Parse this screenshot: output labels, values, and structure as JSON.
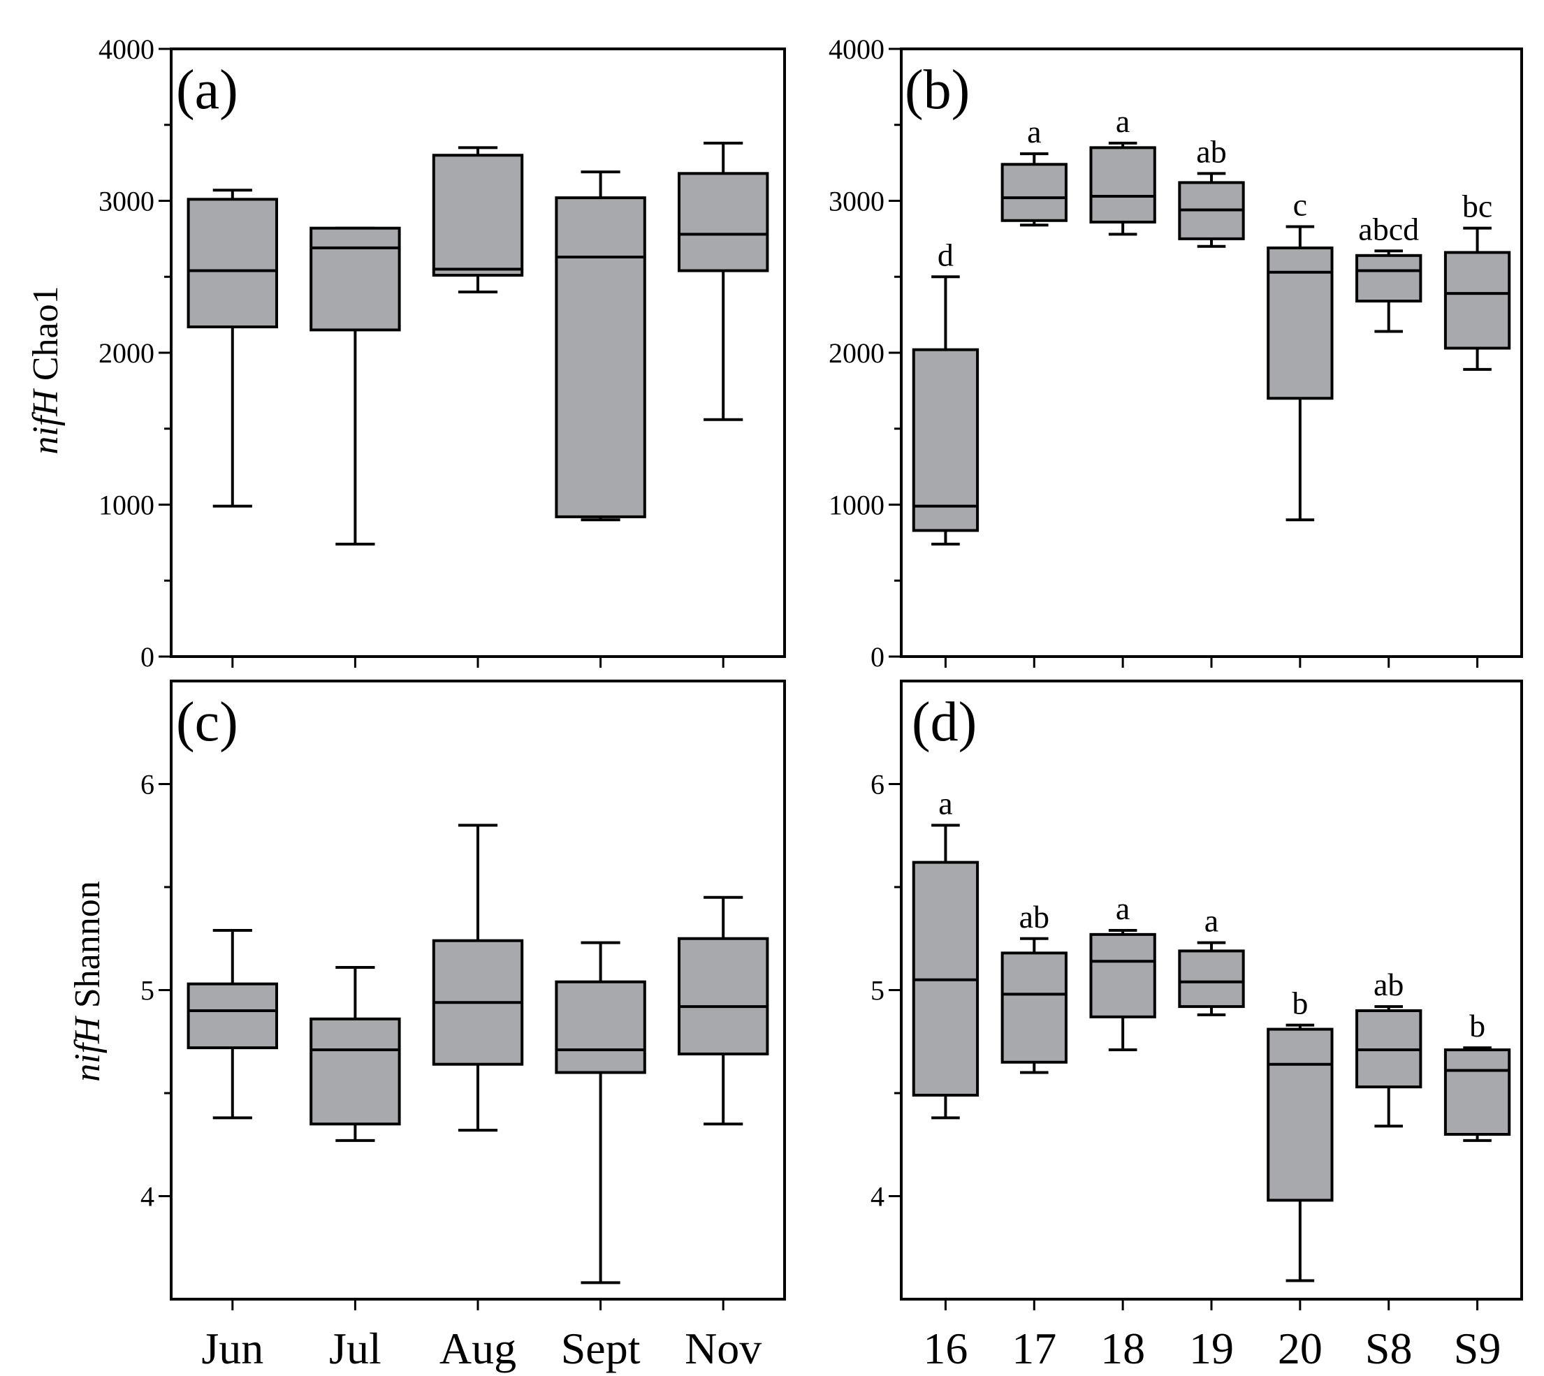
{
  "chart_data": [
    {
      "panel": "(a)",
      "type": "boxplot",
      "ylabel_gene": "nifH",
      "ylabel_metric": "Chao1",
      "ylim": [
        0,
        4000
      ],
      "yticks": [
        0,
        1000,
        2000,
        3000,
        4000
      ],
      "yticks_minor": [
        500,
        1500,
        2500,
        3500
      ],
      "categories": [
        "Jun",
        "Jul",
        "Aug",
        "Sept",
        "Nov"
      ],
      "boxes": [
        {
          "min": 990,
          "q1": 2170,
          "median": 2540,
          "q3": 3010,
          "max": 3070
        },
        {
          "min": 740,
          "q1": 2150,
          "median": 2690,
          "q3": 2820,
          "max": 2820
        },
        {
          "min": 2400,
          "q1": 2510,
          "median": 2550,
          "q3": 3300,
          "max": 3350
        },
        {
          "min": 900,
          "q1": 920,
          "median": 2630,
          "q3": 3020,
          "max": 3190
        },
        {
          "min": 1560,
          "q1": 2540,
          "median": 2780,
          "q3": 3180,
          "max": 3380
        }
      ],
      "letters": []
    },
    {
      "panel": "(b)",
      "type": "boxplot",
      "ylim": [
        0,
        4000
      ],
      "yticks": [
        0,
        1000,
        2000,
        3000,
        4000
      ],
      "yticks_minor": [
        500,
        1500,
        2500,
        3500
      ],
      "categories": [
        "16",
        "17",
        "18",
        "19",
        "20",
        "S8",
        "S9"
      ],
      "boxes": [
        {
          "min": 740,
          "q1": 830,
          "median": 990,
          "q3": 2020,
          "max": 2500
        },
        {
          "min": 2840,
          "q1": 2870,
          "median": 3020,
          "q3": 3240,
          "max": 3310
        },
        {
          "min": 2780,
          "q1": 2860,
          "median": 3030,
          "q3": 3350,
          "max": 3380
        },
        {
          "min": 2700,
          "q1": 2750,
          "median": 2940,
          "q3": 3120,
          "max": 3180
        },
        {
          "min": 900,
          "q1": 1700,
          "median": 2530,
          "q3": 2690,
          "max": 2830
        },
        {
          "min": 2140,
          "q1": 2340,
          "median": 2540,
          "q3": 2640,
          "max": 2670
        },
        {
          "min": 1890,
          "q1": 2030,
          "median": 2390,
          "q3": 2660,
          "max": 2820
        }
      ],
      "letters": [
        "d",
        "a",
        "a",
        "ab",
        "c",
        "abcd",
        "bc"
      ]
    },
    {
      "panel": "(c)",
      "type": "boxplot",
      "ylabel_gene": "nifH",
      "ylabel_metric": "Shannon",
      "ylim": [
        3.5,
        6.5
      ],
      "yticks": [
        4,
        5,
        6
      ],
      "yticks_minor": [
        4.5,
        5.5
      ],
      "categories": [
        "Jun",
        "Jul",
        "Aug",
        "Sept",
        "Nov"
      ],
      "boxes": [
        {
          "min": 4.38,
          "q1": 4.72,
          "median": 4.9,
          "q3": 5.03,
          "max": 5.29
        },
        {
          "min": 4.27,
          "q1": 4.35,
          "median": 4.71,
          "q3": 4.86,
          "max": 5.11
        },
        {
          "min": 4.32,
          "q1": 4.64,
          "median": 4.94,
          "q3": 5.24,
          "max": 5.8
        },
        {
          "min": 3.58,
          "q1": 4.6,
          "median": 4.71,
          "q3": 5.04,
          "max": 5.23
        },
        {
          "min": 4.35,
          "q1": 4.69,
          "median": 4.92,
          "q3": 5.25,
          "max": 5.45
        }
      ],
      "letters": []
    },
    {
      "panel": "(d)",
      "type": "boxplot",
      "ylim": [
        3.5,
        6.5
      ],
      "yticks": [
        4,
        5,
        6
      ],
      "yticks_minor": [
        4.5,
        5.5
      ],
      "categories": [
        "16",
        "17",
        "18",
        "19",
        "20",
        "S8",
        "S9"
      ],
      "boxes": [
        {
          "min": 4.38,
          "q1": 4.49,
          "median": 5.05,
          "q3": 5.62,
          "max": 5.8
        },
        {
          "min": 4.6,
          "q1": 4.65,
          "median": 4.98,
          "q3": 5.18,
          "max": 5.25
        },
        {
          "min": 4.71,
          "q1": 4.87,
          "median": 5.14,
          "q3": 5.27,
          "max": 5.29
        },
        {
          "min": 4.88,
          "q1": 4.92,
          "median": 5.04,
          "q3": 5.19,
          "max": 5.23
        },
        {
          "min": 3.59,
          "q1": 3.98,
          "median": 4.64,
          "q3": 4.81,
          "max": 4.83
        },
        {
          "min": 4.34,
          "q1": 4.53,
          "median": 4.71,
          "q3": 4.9,
          "max": 4.92
        },
        {
          "min": 4.27,
          "q1": 4.3,
          "median": 4.61,
          "q3": 4.71,
          "max": 4.72
        }
      ],
      "letters": [
        "a",
        "ab",
        "a",
        "a",
        "b",
        "ab",
        "b"
      ]
    }
  ]
}
